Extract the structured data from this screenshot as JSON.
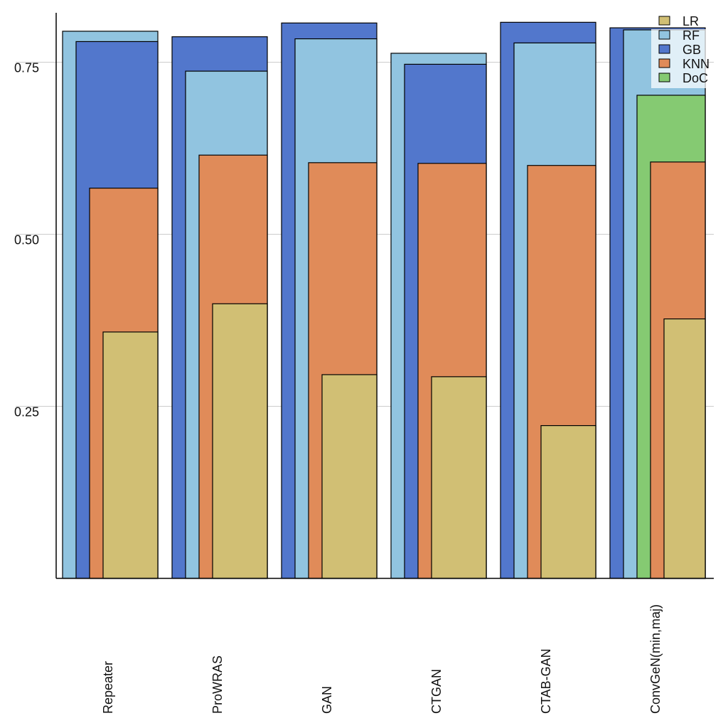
{
  "chart_data": {
    "type": "bar",
    "title": "",
    "xlabel": "",
    "ylabel": "",
    "ylim": [
      0,
      0.83
    ],
    "yticks": [
      0.25,
      0.5,
      0.75
    ],
    "ytick_labels": [
      "0.25",
      "0.50",
      "0.75"
    ],
    "grid": "horizontal",
    "legend_position": "top-right",
    "categories": [
      "Repeater",
      "ProWRAS",
      "GAN",
      "CTGAN",
      "CTAB-GAN",
      "ConvGeN(min,maj)"
    ],
    "series": [
      {
        "name": "LR",
        "color": "#d1bf74",
        "values": [
          0.358,
          0.399,
          0.296,
          0.293,
          0.222,
          0.377
        ]
      },
      {
        "name": "RF",
        "color": "#91c4e0",
        "values": [
          0.795,
          0.737,
          0.784,
          0.763,
          0.778,
          0.797
        ]
      },
      {
        "name": "GB",
        "color": "#5277cc",
        "values": [
          0.78,
          0.787,
          0.807,
          0.747,
          0.808,
          0.8
        ]
      },
      {
        "name": "KNN",
        "color": "#e08b59",
        "values": [
          0.567,
          0.615,
          0.604,
          0.603,
          0.6,
          0.605
        ]
      },
      {
        "name": "DoC",
        "color": "#85ca72",
        "values": [
          null,
          null,
          null,
          null,
          null,
          0.702
        ]
      }
    ]
  }
}
